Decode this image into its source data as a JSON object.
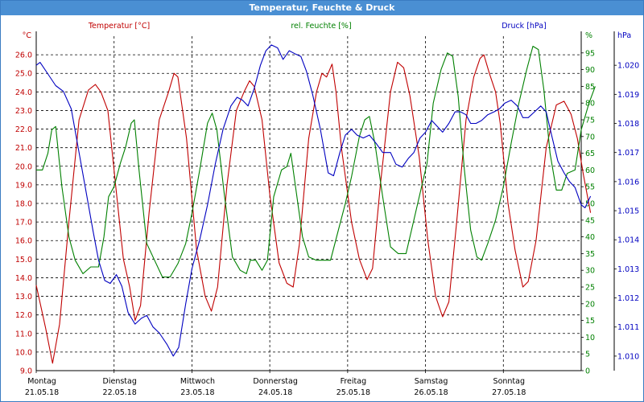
{
  "window": {
    "title": "Temperatur, Feuchte & Druck"
  },
  "chart_data": {
    "type": "line",
    "title": "Temperatur, Feuchte & Druck",
    "grid": true,
    "legend": "top",
    "colors": {
      "temperature": "#c00000",
      "humidity": "#008000",
      "pressure": "#0000c0"
    },
    "axes": {
      "left": {
        "unit": "°C",
        "range": [
          9.0,
          27.0
        ],
        "step": 1.0,
        "decimals": 1,
        "ticks": [
          "9.0",
          "10.0",
          "11.0",
          "12.0",
          "13.0",
          "14.0",
          "15.0",
          "16.0",
          "17.0",
          "18.0",
          "19.0",
          "20.0",
          "21.0",
          "22.0",
          "23.0",
          "24.0",
          "25.0",
          "26.0"
        ]
      },
      "right1": {
        "unit": "%",
        "range": [
          0,
          100
        ],
        "step": 5,
        "ticks": [
          "0",
          "5",
          "10",
          "15",
          "20",
          "25",
          "30",
          "35",
          "40",
          "45",
          "50",
          "55",
          "60",
          "65",
          "70",
          "75",
          "80",
          "85",
          "90",
          "95"
        ]
      },
      "right2": {
        "unit": "hPa",
        "range": [
          1.0095,
          1.021
        ],
        "step": 0.001,
        "ticks": [
          "1.010",
          "1.011",
          "1.012",
          "1.013",
          "1.014",
          "1.015",
          "1.016",
          "1.017",
          "1.018",
          "1.019",
          "1.020"
        ]
      }
    },
    "x_range": [
      0,
      7.0
    ],
    "x_ticks": [
      {
        "x": 0,
        "day": "Montag",
        "date": "21.05.18"
      },
      {
        "x": 1,
        "day": "Dienstag",
        "date": "22.05.18"
      },
      {
        "x": 2,
        "day": "Mittwoch",
        "date": "23.05.18"
      },
      {
        "x": 3,
        "day": "Donnerstag",
        "date": "24.05.18"
      },
      {
        "x": 4,
        "day": "Freitag",
        "date": "25.05.18"
      },
      {
        "x": 5,
        "day": "Samstag",
        "date": "26.05.18"
      },
      {
        "x": 6,
        "day": "Sonntag",
        "date": "27.05.18"
      }
    ],
    "series": [
      {
        "name": "Temperatur [°C]",
        "axis": "left",
        "color": "#c00000",
        "points": [
          [
            0,
            13.6
          ],
          [
            0.12,
            11.3
          ],
          [
            0.21,
            9.4
          ],
          [
            0.3,
            11.5
          ],
          [
            0.42,
            17.0
          ],
          [
            0.55,
            22.5
          ],
          [
            0.67,
            24.1
          ],
          [
            0.76,
            24.4
          ],
          [
            0.83,
            24.0
          ],
          [
            0.92,
            23.0
          ],
          [
            1.02,
            19.0
          ],
          [
            1.12,
            15.0
          ],
          [
            1.2,
            13.5
          ],
          [
            1.27,
            11.7
          ],
          [
            1.34,
            12.5
          ],
          [
            1.45,
            17.5
          ],
          [
            1.58,
            22.5
          ],
          [
            1.7,
            24.0
          ],
          [
            1.77,
            25.0
          ],
          [
            1.82,
            24.8
          ],
          [
            1.93,
            21.5
          ],
          [
            2.06,
            15.5
          ],
          [
            2.17,
            13.0
          ],
          [
            2.25,
            12.2
          ],
          [
            2.33,
            13.5
          ],
          [
            2.45,
            19.0
          ],
          [
            2.57,
            23.0
          ],
          [
            2.67,
            24.0
          ],
          [
            2.74,
            24.6
          ],
          [
            2.8,
            24.3
          ],
          [
            2.9,
            22.5
          ],
          [
            3.0,
            18.5
          ],
          [
            3.12,
            14.8
          ],
          [
            3.22,
            13.7
          ],
          [
            3.3,
            13.5
          ],
          [
            3.38,
            15.8
          ],
          [
            3.5,
            21.5
          ],
          [
            3.6,
            24.0
          ],
          [
            3.67,
            25.0
          ],
          [
            3.73,
            24.8
          ],
          [
            3.8,
            25.5
          ],
          [
            3.85,
            24.0
          ],
          [
            3.92,
            21.0
          ],
          [
            4.05,
            17.0
          ],
          [
            4.15,
            15.0
          ],
          [
            4.25,
            13.9
          ],
          [
            4.32,
            14.5
          ],
          [
            4.42,
            19.0
          ],
          [
            4.55,
            24.0
          ],
          [
            4.64,
            25.6
          ],
          [
            4.72,
            25.3
          ],
          [
            4.8,
            23.8
          ],
          [
            4.92,
            20.5
          ],
          [
            5.03,
            16.0
          ],
          [
            5.13,
            13.0
          ],
          [
            5.22,
            11.9
          ],
          [
            5.3,
            12.7
          ],
          [
            5.4,
            17.0
          ],
          [
            5.52,
            22.5
          ],
          [
            5.62,
            24.8
          ],
          [
            5.7,
            25.8
          ],
          [
            5.75,
            26.0
          ],
          [
            5.82,
            25.0
          ],
          [
            5.9,
            24.0
          ],
          [
            5.96,
            22.3
          ],
          [
            6.06,
            18.0
          ],
          [
            6.15,
            15.5
          ],
          [
            6.25,
            13.5
          ],
          [
            6.32,
            13.8
          ],
          [
            6.42,
            16.0
          ],
          [
            6.55,
            21.0
          ],
          [
            6.68,
            23.3
          ],
          [
            6.78,
            23.5
          ],
          [
            6.87,
            22.8
          ],
          [
            6.95,
            21.5
          ],
          [
            7.03,
            19.5
          ],
          [
            7.12,
            17.5
          ]
        ]
      },
      {
        "name": "rel. Feuchte [%]",
        "axis": "right1",
        "color": "#008000",
        "points": [
          [
            0,
            60
          ],
          [
            0.08,
            60
          ],
          [
            0.15,
            65
          ],
          [
            0.2,
            72
          ],
          [
            0.25,
            73
          ],
          [
            0.33,
            55
          ],
          [
            0.42,
            40
          ],
          [
            0.5,
            33
          ],
          [
            0.6,
            29
          ],
          [
            0.7,
            31
          ],
          [
            0.8,
            31
          ],
          [
            0.87,
            40
          ],
          [
            0.93,
            52
          ],
          [
            1.0,
            55
          ],
          [
            1.08,
            62
          ],
          [
            1.15,
            67
          ],
          [
            1.22,
            74
          ],
          [
            1.26,
            75
          ],
          [
            1.32,
            60
          ],
          [
            1.42,
            38
          ],
          [
            1.52,
            33
          ],
          [
            1.62,
            28
          ],
          [
            1.72,
            28
          ],
          [
            1.82,
            32
          ],
          [
            1.92,
            38
          ],
          [
            2.0,
            47
          ],
          [
            2.1,
            60
          ],
          [
            2.2,
            74
          ],
          [
            2.26,
            77
          ],
          [
            2.32,
            72
          ],
          [
            2.42,
            52
          ],
          [
            2.52,
            34
          ],
          [
            2.62,
            30
          ],
          [
            2.7,
            29
          ],
          [
            2.75,
            33
          ],
          [
            2.82,
            33
          ],
          [
            2.9,
            30
          ],
          [
            2.97,
            33
          ],
          [
            3.05,
            52
          ],
          [
            3.15,
            60
          ],
          [
            3.22,
            61
          ],
          [
            3.27,
            65
          ],
          [
            3.33,
            55
          ],
          [
            3.42,
            40
          ],
          [
            3.5,
            34
          ],
          [
            3.6,
            33
          ],
          [
            3.7,
            33
          ],
          [
            3.78,
            33
          ],
          [
            3.88,
            42
          ],
          [
            3.97,
            50
          ],
          [
            4.05,
            58
          ],
          [
            4.15,
            70
          ],
          [
            4.22,
            75
          ],
          [
            4.28,
            76
          ],
          [
            4.35,
            68
          ],
          [
            4.45,
            52
          ],
          [
            4.55,
            37
          ],
          [
            4.65,
            35
          ],
          [
            4.75,
            35
          ],
          [
            4.85,
            45
          ],
          [
            4.95,
            55
          ],
          [
            5.02,
            62
          ],
          [
            5.1,
            80
          ],
          [
            5.2,
            90
          ],
          [
            5.28,
            95
          ],
          [
            5.35,
            94
          ],
          [
            5.42,
            82
          ],
          [
            5.5,
            60
          ],
          [
            5.58,
            42
          ],
          [
            5.66,
            34
          ],
          [
            5.72,
            33
          ],
          [
            5.8,
            38
          ],
          [
            5.9,
            45
          ],
          [
            6.0,
            55
          ],
          [
            6.1,
            68
          ],
          [
            6.2,
            80
          ],
          [
            6.3,
            90
          ],
          [
            6.38,
            97
          ],
          [
            6.45,
            96
          ],
          [
            6.52,
            84
          ],
          [
            6.6,
            65
          ],
          [
            6.68,
            54
          ],
          [
            6.75,
            54
          ],
          [
            6.82,
            59
          ],
          [
            6.92,
            60
          ],
          [
            7.0,
            72
          ],
          [
            7.1,
            80
          ],
          [
            7.18,
            85
          ]
        ]
      },
      {
        "name": "Druck [hPa]",
        "axis": "right2",
        "color": "#0000c0",
        "points": [
          [
            0,
            1.02
          ],
          [
            0.05,
            1.0201
          ],
          [
            0.15,
            1.0197
          ],
          [
            0.25,
            1.0193
          ],
          [
            0.35,
            1.0191
          ],
          [
            0.45,
            1.0185
          ],
          [
            0.55,
            1.017
          ],
          [
            0.65,
            1.0155
          ],
          [
            0.73,
            1.0143
          ],
          [
            0.8,
            1.0133
          ],
          [
            0.88,
            1.0126
          ],
          [
            0.95,
            1.0125
          ],
          [
            1.03,
            1.0128
          ],
          [
            1.1,
            1.0124
          ],
          [
            1.18,
            1.0115
          ],
          [
            1.27,
            1.0111
          ],
          [
            1.35,
            1.0113
          ],
          [
            1.42,
            1.0114
          ],
          [
            1.5,
            1.011
          ],
          [
            1.58,
            1.0108
          ],
          [
            1.68,
            1.0104
          ],
          [
            1.76,
            1.01
          ],
          [
            1.83,
            1.0103
          ],
          [
            1.92,
            1.0118
          ],
          [
            2.0,
            1.013
          ],
          [
            2.1,
            1.014
          ],
          [
            2.2,
            1.0152
          ],
          [
            2.3,
            1.0166
          ],
          [
            2.4,
            1.0178
          ],
          [
            2.5,
            1.0186
          ],
          [
            2.58,
            1.0189
          ],
          [
            2.65,
            1.0188
          ],
          [
            2.72,
            1.0186
          ],
          [
            2.8,
            1.0192
          ],
          [
            2.88,
            1.02
          ],
          [
            2.95,
            1.0205
          ],
          [
            3.02,
            1.0207
          ],
          [
            3.1,
            1.0206
          ],
          [
            3.17,
            1.0202
          ],
          [
            3.25,
            1.0205
          ],
          [
            3.32,
            1.0204
          ],
          [
            3.4,
            1.0203
          ],
          [
            3.47,
            1.0198
          ],
          [
            3.55,
            1.019
          ],
          [
            3.65,
            1.0178
          ],
          [
            3.75,
            1.0163
          ],
          [
            3.82,
            1.0162
          ],
          [
            3.9,
            1.017
          ],
          [
            3.97,
            1.0176
          ],
          [
            4.05,
            1.0178
          ],
          [
            4.12,
            1.0176
          ],
          [
            4.2,
            1.0175
          ],
          [
            4.28,
            1.0176
          ],
          [
            4.37,
            1.0173
          ],
          [
            4.45,
            1.017
          ],
          [
            4.55,
            1.017
          ],
          [
            4.62,
            1.0166
          ],
          [
            4.7,
            1.0165
          ],
          [
            4.78,
            1.0168
          ],
          [
            4.85,
            1.017
          ],
          [
            4.93,
            1.0175
          ],
          [
            5.0,
            1.0177
          ],
          [
            5.08,
            1.0181
          ],
          [
            5.15,
            1.0179
          ],
          [
            5.22,
            1.0177
          ],
          [
            5.3,
            1.018
          ],
          [
            5.38,
            1.0184
          ],
          [
            5.45,
            1.0184
          ],
          [
            5.52,
            1.0183
          ],
          [
            5.58,
            1.018
          ],
          [
            5.65,
            1.018
          ],
          [
            5.72,
            1.0181
          ],
          [
            5.8,
            1.0183
          ],
          [
            5.88,
            1.0184
          ],
          [
            5.95,
            1.0185
          ],
          [
            6.02,
            1.0187
          ],
          [
            6.1,
            1.0188
          ],
          [
            6.18,
            1.0186
          ],
          [
            6.25,
            1.0182
          ],
          [
            6.32,
            1.0182
          ],
          [
            6.4,
            1.0184
          ],
          [
            6.48,
            1.0186
          ],
          [
            6.55,
            1.0184
          ],
          [
            6.62,
            1.0176
          ],
          [
            6.7,
            1.0167
          ],
          [
            6.78,
            1.0163
          ],
          [
            6.85,
            1.016
          ],
          [
            6.92,
            1.0158
          ],
          [
            7.0,
            1.0152
          ],
          [
            7.05,
            1.0151
          ],
          [
            7.12,
            1.0155
          ]
        ]
      }
    ]
  }
}
